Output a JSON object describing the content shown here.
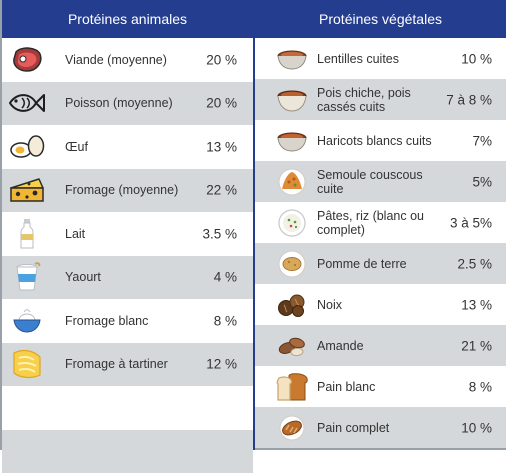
{
  "header": {
    "animal_title": "Protéines animales",
    "vegetal_title": "Protéines végétales"
  },
  "colors": {
    "header": "#253d8f",
    "stripe": "#d5d8db",
    "text": "#333333"
  },
  "animal": [
    {
      "name": "Viande (moyenne)",
      "value": "20 %",
      "icon": "steak-icon"
    },
    {
      "name": "Poisson (moyenne)",
      "value": "20 %",
      "icon": "fish-icon"
    },
    {
      "name": "Œuf",
      "value": "13 %",
      "icon": "egg-icon"
    },
    {
      "name": "Fromage (moyenne)",
      "value": "22 %",
      "icon": "cheese-icon"
    },
    {
      "name": "Lait",
      "value": "3.5 %",
      "icon": "milk-bottle-icon"
    },
    {
      "name": "Yaourt",
      "value": "4 %",
      "icon": "yogurt-icon"
    },
    {
      "name": "Fromage blanc",
      "value": "8 %",
      "icon": "cream-cheese-bowl-icon"
    },
    {
      "name": "Fromage à tartiner",
      "value": "12 %",
      "icon": "cheese-spread-icon"
    }
  ],
  "vegetal": [
    {
      "name": "Lentilles cuites",
      "value": "10 %",
      "icon": "lentils-bowl-icon"
    },
    {
      "name": "Pois chiche, pois cassés cuits",
      "value": "7 à 8 %",
      "icon": "chickpeas-bowl-icon"
    },
    {
      "name": "Haricots blancs cuits",
      "value": "7%",
      "icon": "beans-bowl-icon"
    },
    {
      "name": "Semoule couscous cuite",
      "value": "5%",
      "icon": "couscous-icon"
    },
    {
      "name": "Pâtes, riz (blanc ou complet)",
      "value": "3 à 5%",
      "icon": "rice-plate-icon"
    },
    {
      "name": "Pomme de terre",
      "value": "2.5 %",
      "icon": "potato-icon"
    },
    {
      "name": "Noix",
      "value": "13 %",
      "icon": "walnut-icon"
    },
    {
      "name": "Amande",
      "value": "21 %",
      "icon": "almond-icon"
    },
    {
      "name": "Pain blanc",
      "value": "8 %",
      "icon": "white-bread-icon"
    },
    {
      "name": "Pain complet",
      "value": "10 %",
      "icon": "wholemeal-bread-icon"
    }
  ]
}
